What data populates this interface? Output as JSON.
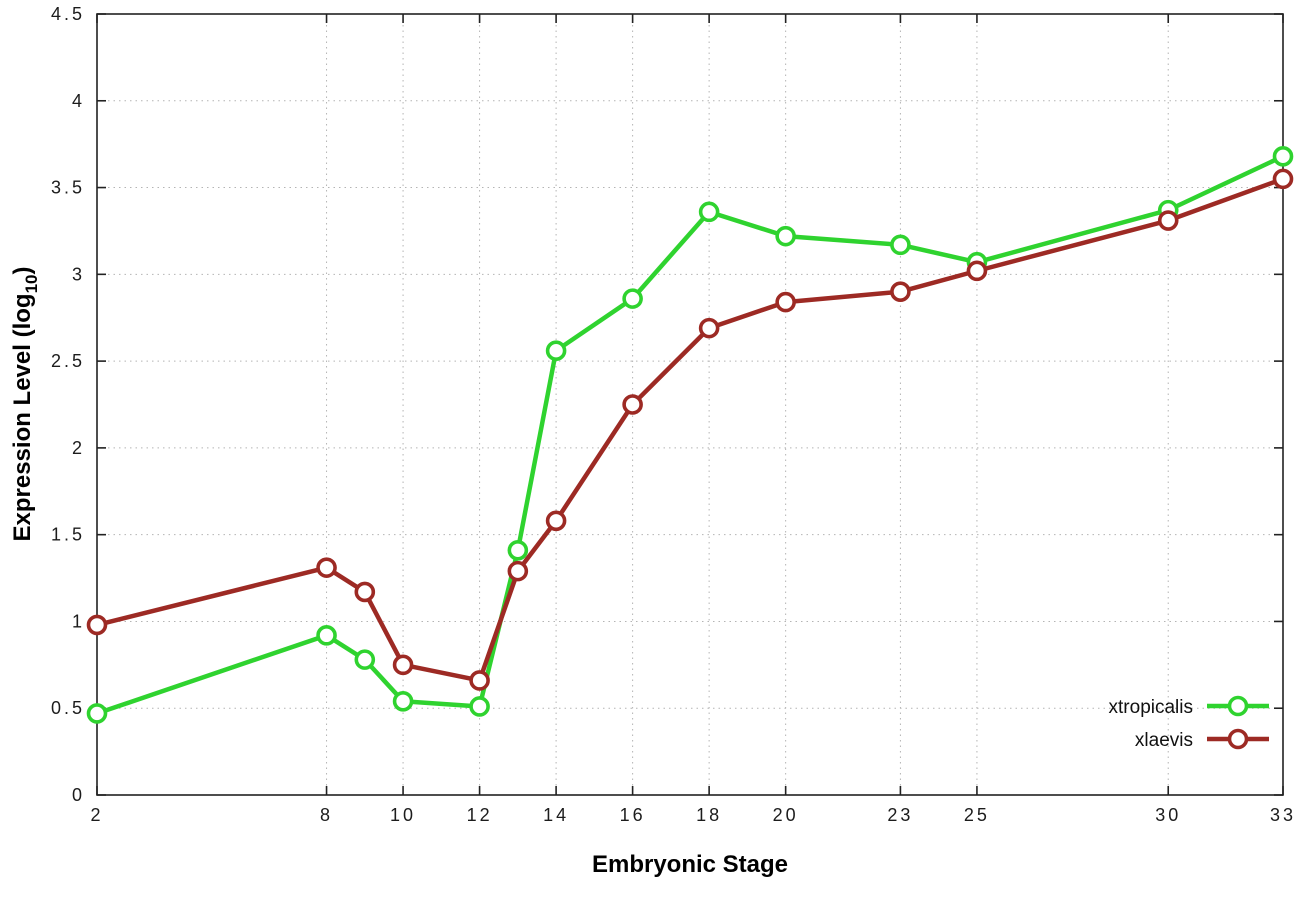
{
  "chart_data": {
    "type": "line",
    "title": "",
    "xlabel": "Embryonic Stage",
    "ylabel": "Expression Level (log10)",
    "ylabel_parts": {
      "main": "Expression Level (log",
      "sub": "10",
      "close": ")"
    },
    "x": [
      2,
      8,
      9,
      10,
      12,
      13,
      14,
      16,
      18,
      20,
      23,
      25,
      30,
      33
    ],
    "series": [
      {
        "name": "xtropicalis",
        "color": "#2fd32f",
        "values": [
          0.47,
          0.92,
          0.78,
          0.54,
          0.51,
          1.41,
          2.56,
          2.86,
          3.36,
          3.22,
          3.17,
          3.07,
          3.37,
          3.68
        ]
      },
      {
        "name": "xlaevis",
        "color": "#9d2a24",
        "values": [
          0.98,
          1.31,
          1.17,
          0.75,
          0.66,
          1.29,
          1.58,
          2.25,
          2.69,
          2.84,
          2.9,
          3.02,
          3.31,
          3.55
        ]
      }
    ],
    "xlim": [
      2,
      33
    ],
    "ylim": [
      0,
      4.5
    ],
    "xticks": [
      2,
      8,
      10,
      12,
      14,
      16,
      18,
      20,
      23,
      25,
      30,
      33
    ],
    "yticks": [
      0,
      0.5,
      1,
      1.5,
      2,
      2.5,
      3,
      3.5,
      4,
      4.5
    ],
    "grid": true,
    "grid_color": "#b4b4b4",
    "border_color": "#222222",
    "legend_position": "bottom-right-inside",
    "legend": [
      "xtropicalis",
      "xlaevis"
    ]
  }
}
